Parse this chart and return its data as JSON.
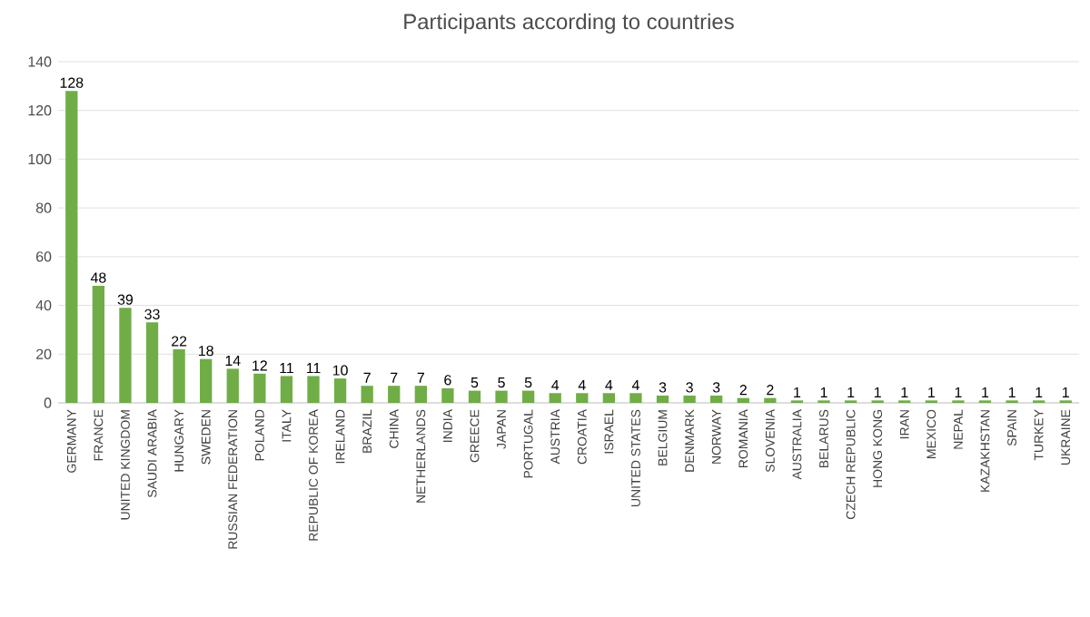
{
  "chart_data": {
    "type": "bar",
    "title": "Participants according to countries",
    "categories": [
      "GERMANY",
      "FRANCE",
      "UNITED KINGDOM",
      "SAUDI ARABIA",
      "HUNGARY",
      "SWEDEN",
      "RUSSIAN FEDERATION",
      "POLAND",
      "ITALY",
      "REPUBLIC OF KOREA",
      "IRELAND",
      "BRAZIL",
      "CHINA",
      "NETHERLANDS",
      "INDIA",
      "GREECE",
      "JAPAN",
      "PORTUGAL",
      "AUSTRIA",
      "CROATIA",
      "ISRAEL",
      "UNITED STATES",
      "BELGIUM",
      "DENMARK",
      "NORWAY",
      "ROMANIA",
      "SLOVENIA",
      "AUSTRALIA",
      "BELARUS",
      "CZECH REPUBLIC",
      "HONG KONG",
      "IRAN",
      "MEXICO",
      "NEPAL",
      "KAZAKHSTAN",
      "SPAIN",
      "TURKEY",
      "UKRAINE"
    ],
    "values": [
      128,
      48,
      39,
      33,
      22,
      18,
      14,
      12,
      11,
      11,
      10,
      7,
      7,
      7,
      6,
      5,
      5,
      5,
      4,
      4,
      4,
      4,
      3,
      3,
      3,
      2,
      2,
      1,
      1,
      1,
      1,
      1,
      1,
      1,
      1,
      1,
      1,
      1
    ],
    "color": "#70ad47",
    "ylim": [
      0,
      140
    ],
    "yticks": [
      0,
      20,
      40,
      60,
      80,
      100,
      120,
      140
    ],
    "grid": "y",
    "data_labels": true
  }
}
